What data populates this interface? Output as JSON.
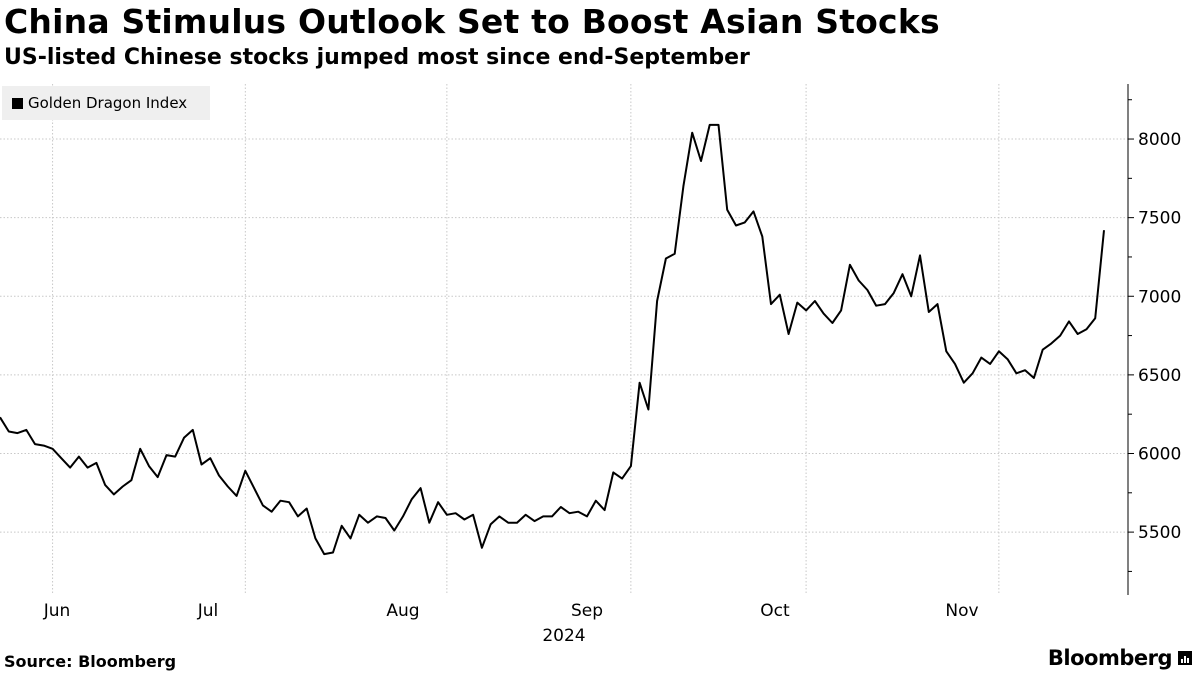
{
  "chart_data": {
    "type": "line",
    "title": "China Stimulus Outlook Set to Boost Asian Stocks",
    "subtitle": "US-listed Chinese stocks jumped most since end-September",
    "legend": [
      "Golden Dragon Index"
    ],
    "series": [
      {
        "name": "Golden Dragon Index",
        "color": "#000000",
        "values": [
          6230,
          6140,
          6130,
          6150,
          6060,
          6050,
          6030,
          5970,
          5910,
          5980,
          5910,
          5940,
          5800,
          5740,
          5790,
          5830,
          6030,
          5920,
          5850,
          5990,
          5980,
          6100,
          6150,
          5930,
          5970,
          5860,
          5790,
          5730,
          5890,
          5780,
          5670,
          5630,
          5700,
          5690,
          5600,
          5650,
          5460,
          5360,
          5370,
          5540,
          5460,
          5610,
          5560,
          5600,
          5590,
          5510,
          5600,
          5710,
          5780,
          5560,
          5690,
          5610,
          5620,
          5580,
          5610,
          5400,
          5550,
          5600,
          5560,
          5560,
          5610,
          5570,
          5600,
          5600,
          5660,
          5620,
          5630,
          5600,
          5700,
          5640,
          5880,
          5840,
          5920,
          6450,
          6280,
          6970,
          7240,
          7270,
          7700,
          8040,
          7860,
          8090,
          8090,
          7550,
          7450,
          7470,
          7540,
          7380,
          6950,
          7010,
          6760,
          6960,
          6910,
          6970,
          6890,
          6830,
          6910,
          7200,
          7100,
          7040,
          6940,
          6950,
          7020,
          7140,
          7000,
          7260,
          6900,
          6950,
          6650,
          6570,
          6450,
          6510,
          6610,
          6570,
          6650,
          6600,
          6510,
          6530,
          6480,
          6660,
          6700,
          6750,
          6840,
          6760,
          6790,
          6860,
          7420
        ]
      }
    ],
    "x_axis": {
      "ticks": [
        "Jun",
        "Jul",
        "Aug",
        "Sep",
        "Oct",
        "Nov"
      ],
      "year_label": "2024"
    },
    "y_axis": {
      "ticks": [
        5500,
        6000,
        6500,
        7000,
        7500,
        8000
      ],
      "range": [
        5100,
        8350
      ],
      "side": "right"
    },
    "grid": true
  },
  "footer": {
    "source": "Source: Bloomberg",
    "brand": "Bloomberg"
  }
}
